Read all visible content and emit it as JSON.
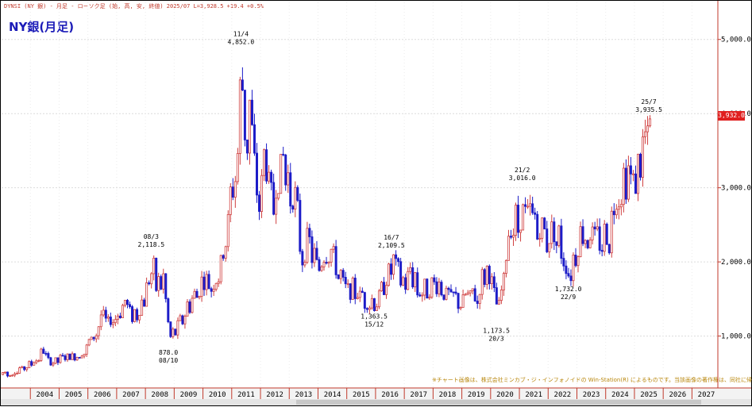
{
  "header_text": "DYNSI (NY 銀) - 月足 - ローソク足 (始, 高, 安, 終値)  2025/07  L=3,928.5  +19.4  +0.5%",
  "chart_title": "NY銀(月足)",
  "copyright": "※チャート画像は、株式会社ミンカブ・ジ・インフォノイドの Win-Station(R) によるものです。当該画像の著作権は、同社に帰属します。",
  "price_badge": "3,932.0",
  "colors": {
    "up": "#d04040",
    "down": "#1c1cc8",
    "axis": "#c0392b",
    "title": "#1c1cb8"
  },
  "chart_data": {
    "type": "candlestick",
    "title": "NY銀(月足)",
    "ylim": [
      300,
      5500
    ],
    "yticks": [
      {
        "value": 1000,
        "label": "1,000.0"
      },
      {
        "value": 2000,
        "label": "2,000.0"
      },
      {
        "value": 3000,
        "label": "3,000.0"
      },
      {
        "value": 4000,
        "label": "4,000.0"
      },
      {
        "value": 5000,
        "label": "5,000.0"
      }
    ],
    "xlim": [
      2003.0,
      2027.9
    ],
    "xticks": [
      "2004",
      "2005",
      "2006",
      "2007",
      "2008",
      "2009",
      "2010",
      "2011",
      "2012",
      "2013",
      "2014",
      "2015",
      "2016",
      "2017",
      "2018",
      "2019",
      "2020",
      "2021",
      "2022",
      "2023",
      "2024",
      "2025",
      "2026",
      "2027"
    ],
    "anchors": [
      [
        2003.0,
        480
      ],
      [
        2003.5,
        520
      ],
      [
        2004.2,
        700
      ],
      [
        2004.4,
        820
      ],
      [
        2004.6,
        640
      ],
      [
        2005.0,
        700
      ],
      [
        2005.5,
        720
      ],
      [
        2005.9,
        820
      ],
      [
        2006.3,
        1100
      ],
      [
        2006.4,
        1400
      ],
      [
        2006.6,
        1150
      ],
      [
        2006.9,
        1300
      ],
      [
        2007.3,
        1380
      ],
      [
        2007.6,
        1250
      ],
      [
        2007.9,
        1450
      ],
      [
        2008.2,
        2050
      ],
      [
        2008.3,
        1750
      ],
      [
        2008.6,
        1700
      ],
      [
        2008.8,
        900
      ],
      [
        2008.95,
        1050
      ],
      [
        2009.3,
        1300
      ],
      [
        2009.6,
        1450
      ],
      [
        2009.9,
        1700
      ],
      [
        2010.2,
        1700
      ],
      [
        2010.5,
        1800
      ],
      [
        2010.8,
        2400
      ],
      [
        2010.95,
        2900
      ],
      [
        2011.15,
        3500
      ],
      [
        2011.32,
        4600
      ],
      [
        2011.45,
        3600
      ],
      [
        2011.6,
        4000
      ],
      [
        2011.75,
        3200
      ],
      [
        2011.95,
        2850
      ],
      [
        2012.1,
        3400
      ],
      [
        2012.4,
        2800
      ],
      [
        2012.7,
        3350
      ],
      [
        2012.95,
        3050
      ],
      [
        2013.2,
        2800
      ],
      [
        2013.4,
        2050
      ],
      [
        2013.6,
        2300
      ],
      [
        2013.9,
        1950
      ],
      [
        2014.2,
        2100
      ],
      [
        2014.5,
        2050
      ],
      [
        2014.9,
        1600
      ],
      [
        2015.2,
        1650
      ],
      [
        2015.5,
        1500
      ],
      [
        2015.9,
        1400
      ],
      [
        2016.1,
        1550
      ],
      [
        2016.5,
        1950
      ],
      [
        2016.7,
        1950
      ],
      [
        2016.9,
        1650
      ],
      [
        2017.2,
        1800
      ],
      [
        2017.5,
        1650
      ],
      [
        2017.9,
        1650
      ],
      [
        2018.2,
        1650
      ],
      [
        2018.6,
        1500
      ],
      [
        2018.9,
        1450
      ],
      [
        2019.2,
        1500
      ],
      [
        2019.5,
        1550
      ],
      [
        2019.7,
        1800
      ],
      [
        2019.95,
        1800
      ],
      [
        2020.2,
        1300
      ],
      [
        2020.4,
        1700
      ],
      [
        2020.6,
        2500
      ],
      [
        2020.8,
        2600
      ],
      [
        2021.1,
        2650
      ],
      [
        2021.3,
        2600
      ],
      [
        2021.6,
        2500
      ],
      [
        2021.9,
        2300
      ],
      [
        2022.2,
        2500
      ],
      [
        2022.4,
        2200
      ],
      [
        2022.7,
        1850
      ],
      [
        2022.9,
        2050
      ],
      [
        2023.1,
        2350
      ],
      [
        2023.4,
        2400
      ],
      [
        2023.7,
        2300
      ],
      [
        2023.9,
        2350
      ],
      [
        2024.1,
        2300
      ],
      [
        2024.3,
        2900
      ],
      [
        2024.5,
        2950
      ],
      [
        2024.7,
        3100
      ],
      [
        2024.85,
        3000
      ],
      [
        2025.0,
        3150
      ],
      [
        2025.2,
        3300
      ],
      [
        2025.3,
        3500
      ],
      [
        2025.4,
        3550
      ],
      [
        2025.5,
        3900
      ]
    ],
    "annotations": [
      {
        "x": 2008.2,
        "y": 2118.5,
        "date": "08/3",
        "value": "2,118.5",
        "pos": "above"
      },
      {
        "x": 2008.8,
        "y": 878.0,
        "date": "08/10",
        "value": "878.0",
        "pos": "below"
      },
      {
        "x": 2011.32,
        "y": 4852.0,
        "date": "11/4",
        "value": "4,852.0",
        "pos": "above"
      },
      {
        "x": 2015.95,
        "y": 1363.5,
        "date": "15/12",
        "value": "1,363.5",
        "pos": "below"
      },
      {
        "x": 2016.55,
        "y": 2109.5,
        "date": "16/7",
        "value": "2,109.5",
        "pos": "above"
      },
      {
        "x": 2020.2,
        "y": 1173.5,
        "date": "20/3",
        "value": "1,173.5",
        "pos": "below"
      },
      {
        "x": 2021.1,
        "y": 3016.0,
        "date": "21/2",
        "value": "3,016.0",
        "pos": "above"
      },
      {
        "x": 2022.7,
        "y": 1732.0,
        "date": "22/9",
        "value": "1,732.0",
        "pos": "below"
      },
      {
        "x": 2025.5,
        "y": 3935.5,
        "date": "25/7",
        "value": "3,935.5",
        "pos": "above"
      }
    ]
  }
}
